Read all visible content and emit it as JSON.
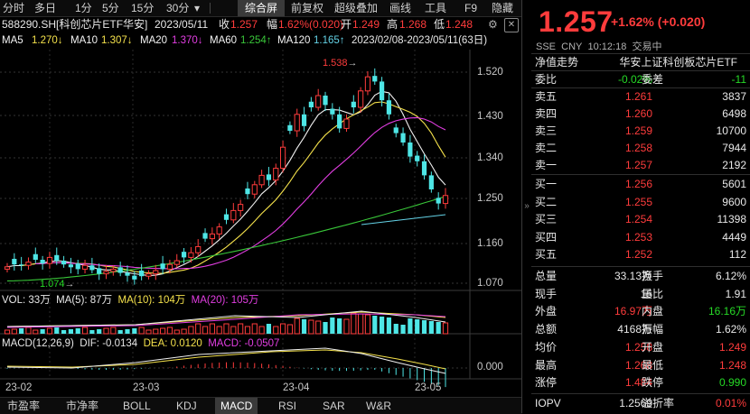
{
  "toolbar": {
    "items": [
      "分时",
      "多日",
      "1分",
      "5分",
      "15分",
      "30分",
      "综合屏",
      "前复权",
      "超级叠加",
      "画线",
      "工具",
      "F9",
      "隐藏"
    ],
    "active": "综合屏"
  },
  "info": {
    "symbol": "588290.SH[科创芯片ETF华安]",
    "date": "2023/05/11",
    "close_label": "收",
    "close": "1.257",
    "range_label": "幅",
    "range": "1.62%(0.020)",
    "open_label": "开",
    "open": "1.249",
    "high_label": "高",
    "high": "1.268",
    "low_label": "低",
    "low": "1.248"
  },
  "ma": {
    "ma5_label": "MA5",
    "ma5": "1.270↓",
    "ma10_label": "MA10",
    "ma10": "1.307↓",
    "ma20_label": "MA20",
    "ma20": "1.370↓",
    "ma60_label": "MA60",
    "ma60": "1.254↑",
    "ma120_label": "MA120",
    "ma120": "1.165↑",
    "range": "2023/02/08-2023/05/11(63日)"
  },
  "price_axis": [
    "1.520",
    "1.430",
    "1.340",
    "1.250",
    "1.160",
    "1.070"
  ],
  "annotations": {
    "max": "1.538",
    "min": "1.074"
  },
  "vol": {
    "label": "VOL: 33万",
    "ma5": "MA(5): 87万",
    "ma10": "MA(10): 104万",
    "ma20": "MA(20): 105万"
  },
  "macd": {
    "label": "MACD(12,26,9)",
    "dif": "DIF: -0.0134",
    "dea": "DEA: 0.0120",
    "macd": "MACD: -0.0507",
    "axis0": "0.000"
  },
  "x_axis": [
    "23-02",
    "23-03",
    "23-04",
    "23-05"
  ],
  "bottom_tabs": [
    "市盈率",
    "市净率",
    "BOLL",
    "KDJ",
    "MACD",
    "RSI",
    "SAR",
    "W&R"
  ],
  "bottom_active": "MACD",
  "quote": {
    "price": "1.257",
    "change": "+1.62% (+0.020)",
    "market": "SSE",
    "currency": "CNY",
    "time": "10:12:18",
    "status": "交易中",
    "title_left": "净值走势",
    "title_right": "华安上证科创板芯片ETF",
    "weibi_label": "委比",
    "weibi": "-0.02%",
    "weicha_label": "委差",
    "weicha": "-11",
    "asks": [
      {
        "label": "卖五",
        "price": "1.261",
        "vol": "3837"
      },
      {
        "label": "卖四",
        "price": "1.260",
        "vol": "6498"
      },
      {
        "label": "卖三",
        "price": "1.259",
        "vol": "10700"
      },
      {
        "label": "卖二",
        "price": "1.258",
        "vol": "7944"
      },
      {
        "label": "卖一",
        "price": "1.257",
        "vol": "2192"
      }
    ],
    "bids": [
      {
        "label": "买一",
        "price": "1.256",
        "vol": "5601"
      },
      {
        "label": "买二",
        "price": "1.255",
        "vol": "9600"
      },
      {
        "label": "买三",
        "price": "1.254",
        "vol": "11398"
      },
      {
        "label": "买四",
        "price": "1.253",
        "vol": "4449"
      },
      {
        "label": "买五",
        "price": "1.252",
        "vol": "112"
      }
    ],
    "stats": [
      {
        "l1": "总量",
        "v1": "33.13万",
        "l2": "换手",
        "v2": "6.12%",
        "c1": "white",
        "c2": "white"
      },
      {
        "l1": "现手",
        "v1": "15",
        "l2": "量比",
        "v2": "1.91",
        "c1": "white",
        "c2": "white"
      },
      {
        "l1": "外盘",
        "v1": "16.97万",
        "l2": "内盘",
        "v2": "16.16万",
        "c1": "red",
        "c2": "green"
      },
      {
        "l1": "总额",
        "v1": "4168万",
        "l2": "振幅",
        "v2": "1.62%",
        "c1": "white",
        "c2": "white"
      },
      {
        "l1": "均价",
        "v1": "1.258",
        "l2": "开盘",
        "v2": "1.249",
        "c1": "red",
        "c2": "red"
      },
      {
        "l1": "最高",
        "v1": "1.268",
        "l2": "最低",
        "v2": "1.248",
        "c1": "red",
        "c2": "red"
      },
      {
        "l1": "涨停",
        "v1": "1.484",
        "l2": "跌停",
        "v2": "0.990",
        "c1": "red",
        "c2": "green"
      }
    ],
    "iopv_label": "IOPV",
    "iopv": "1.2569",
    "premium_label": "溢折率",
    "premium": "0.01%"
  }
}
